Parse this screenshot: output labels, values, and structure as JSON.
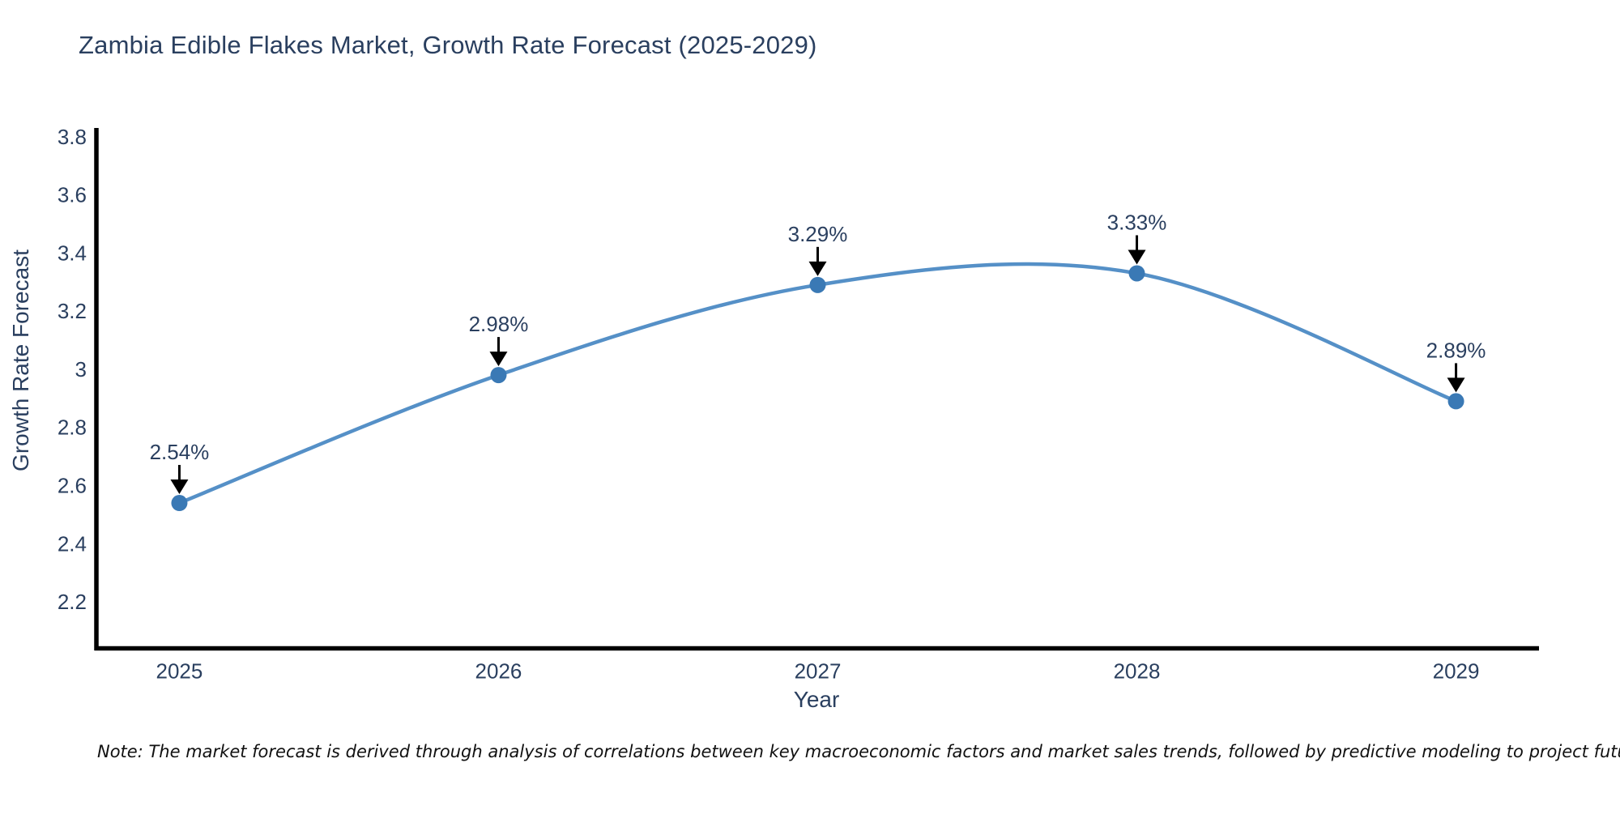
{
  "header": {
    "title": "Zambia Edible Flakes Market, Growth Rate Forecast (2025-2029)"
  },
  "chart_data": {
    "type": "line",
    "title": "Zambia Edible Flakes Market, Growth Rate Forecast (2025-2029)",
    "xlabel": "Year",
    "ylabel": "Growth Rate Forecast",
    "categories": [
      "2025",
      "2026",
      "2027",
      "2028",
      "2029"
    ],
    "values": [
      2.54,
      2.98,
      3.29,
      3.33,
      2.89
    ],
    "point_labels": [
      "2.54%",
      "2.98%",
      "3.29%",
      "3.33%",
      "2.89%"
    ],
    "ytick_labels": [
      "2.2",
      "2.4",
      "2.6",
      "2.8",
      "3",
      "3.2",
      "3.4",
      "3.6",
      "3.8"
    ],
    "ytick_values": [
      2.2,
      2.4,
      2.6,
      2.8,
      3.0,
      3.2,
      3.4,
      3.6,
      3.8
    ],
    "ylim": [
      2.04,
      3.83
    ],
    "xlim": [
      2024.74,
      2029.26
    ],
    "x_values": [
      2025,
      2026,
      2027,
      2028,
      2029
    ],
    "grid": false,
    "legend": "none",
    "line_shape": "spline",
    "annotation_style": "value labels with downward arrows onto markers"
  },
  "footnote": {
    "text": "Note: The market forecast is derived through analysis of correlations between key macroeconomic factors and market sales trends, followed by predictive modeling to project future sales"
  },
  "colors": {
    "line": "#5590c7",
    "marker": "#3a79b5",
    "axis_line": "#000000",
    "arrow": "#000000",
    "text": "#2a3f5f",
    "note_text": "#111111",
    "background": "#ffffff"
  }
}
